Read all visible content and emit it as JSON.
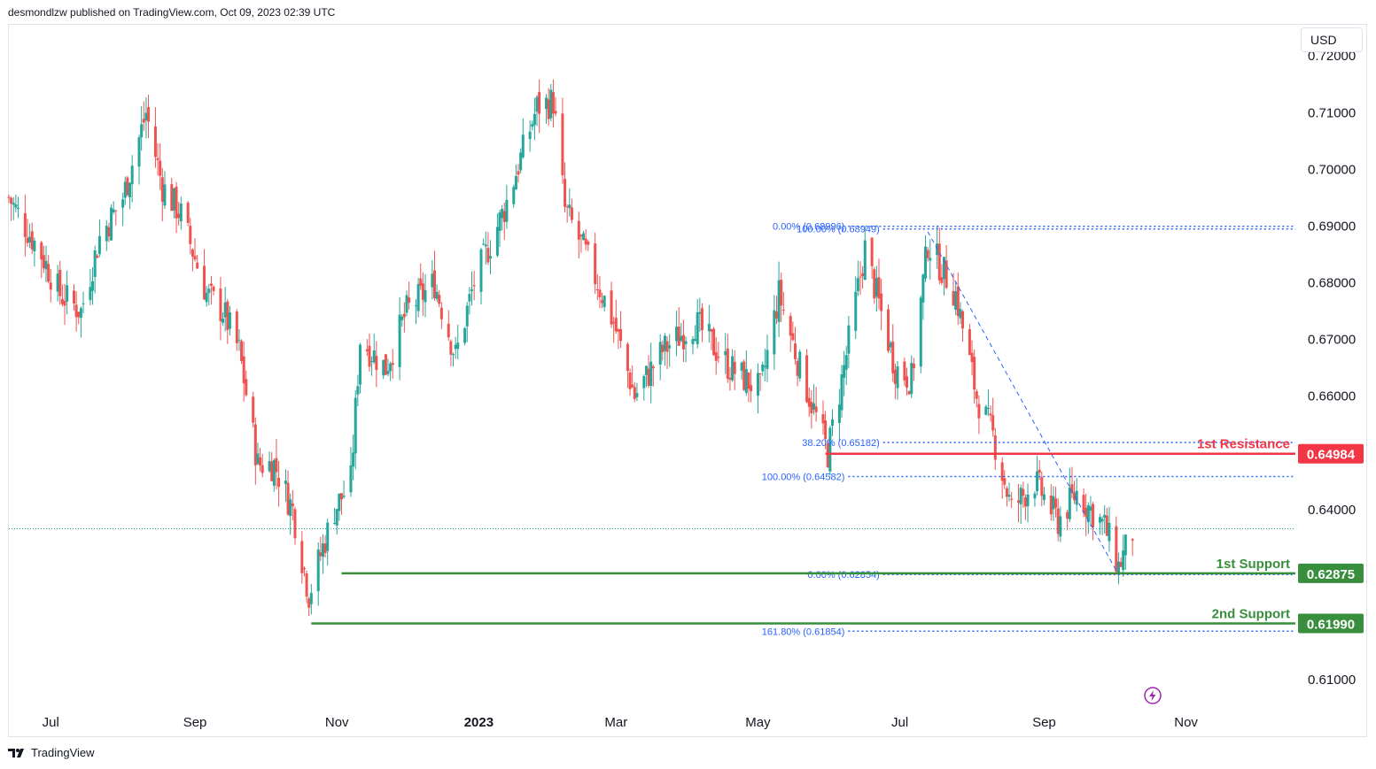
{
  "header": {
    "published": "desmondlzw published on TradingView.com, Oct 09, 2023 02:39 UTC"
  },
  "currency": "USD",
  "footer": {
    "brand": "TradingView",
    "logo_icon": "tradingview-logo-icon"
  },
  "flash_icon": "lightning-icon",
  "colors": {
    "up": "#26a69a",
    "down": "#ef5350",
    "resistance": "#f23645",
    "support": "#388e3c",
    "fib": "#2962ff",
    "last_price": "#26a69a"
  },
  "chart_data": {
    "type": "candlestick",
    "title": "",
    "ylim": [
      0.605,
      0.7255
    ],
    "y_ticks": [
      "0.72000",
      "0.71000",
      "0.70000",
      "0.69000",
      "0.68000",
      "0.67000",
      "0.66000",
      "0.64000",
      "0.61000"
    ],
    "x_ticks": [
      {
        "label": "Jul",
        "date": "2022-07-01",
        "bold": false
      },
      {
        "label": "Sep",
        "date": "2022-09-01",
        "bold": false
      },
      {
        "label": "Nov",
        "date": "2022-11-01",
        "bold": false
      },
      {
        "label": "2023",
        "date": "2023-01-01",
        "bold": true
      },
      {
        "label": "Mar",
        "date": "2023-03-01",
        "bold": false
      },
      {
        "label": "May",
        "date": "2023-05-01",
        "bold": false
      },
      {
        "label": "Jul",
        "date": "2023-07-01",
        "bold": false
      },
      {
        "label": "Sep",
        "date": "2023-09-01",
        "bold": false
      },
      {
        "label": "Nov",
        "date": "2023-11-01",
        "bold": false
      }
    ],
    "x_range": [
      "2022-06-13",
      "2023-12-18"
    ],
    "close_anchors": [
      [
        "2022-06-13",
        0.695
      ],
      [
        "2022-06-20",
        0.69
      ],
      [
        "2022-06-27",
        0.685
      ],
      [
        "2022-07-05",
        0.678
      ],
      [
        "2022-07-14",
        0.675
      ],
      [
        "2022-07-22",
        0.688
      ],
      [
        "2022-08-01",
        0.695
      ],
      [
        "2022-08-11",
        0.71
      ],
      [
        "2022-08-18",
        0.697
      ],
      [
        "2022-08-26",
        0.692
      ],
      [
        "2022-09-06",
        0.678
      ],
      [
        "2022-09-13",
        0.675
      ],
      [
        "2022-09-20",
        0.668
      ],
      [
        "2022-09-28",
        0.648
      ],
      [
        "2022-10-05",
        0.648
      ],
      [
        "2022-10-13",
        0.64
      ],
      [
        "2022-10-20",
        0.625
      ],
      [
        "2022-10-25",
        0.632
      ],
      [
        "2022-10-31",
        0.64
      ],
      [
        "2022-11-07",
        0.645
      ],
      [
        "2022-11-11",
        0.67
      ],
      [
        "2022-11-22",
        0.665
      ],
      [
        "2022-12-01",
        0.675
      ],
      [
        "2022-12-13",
        0.68
      ],
      [
        "2022-12-22",
        0.667
      ],
      [
        "2022-12-30",
        0.68
      ],
      [
        "2023-01-12",
        0.693
      ],
      [
        "2023-01-26",
        0.711
      ],
      [
        "2023-02-02",
        0.712
      ],
      [
        "2023-02-07",
        0.693
      ],
      [
        "2023-02-16",
        0.685
      ],
      [
        "2023-02-28",
        0.673
      ],
      [
        "2023-03-09",
        0.66
      ],
      [
        "2023-03-21",
        0.668
      ],
      [
        "2023-04-04",
        0.673
      ],
      [
        "2023-04-19",
        0.665
      ],
      [
        "2023-05-02",
        0.661
      ],
      [
        "2023-05-10",
        0.678
      ],
      [
        "2023-05-19",
        0.665
      ],
      [
        "2023-05-31",
        0.65
      ],
      [
        "2023-06-07",
        0.665
      ],
      [
        "2023-06-16",
        0.686
      ],
      [
        "2023-06-29",
        0.665
      ],
      [
        "2023-07-06",
        0.663
      ],
      [
        "2023-07-13",
        0.687
      ],
      [
        "2023-07-25",
        0.678
      ],
      [
        "2023-08-03",
        0.66
      ],
      [
        "2023-08-10",
        0.653
      ],
      [
        "2023-08-18",
        0.64
      ],
      [
        "2023-08-28",
        0.645
      ],
      [
        "2023-09-07",
        0.638
      ],
      [
        "2023-09-15",
        0.643
      ],
      [
        "2023-09-27",
        0.637
      ],
      [
        "2023-10-03",
        0.63
      ],
      [
        "2023-10-09",
        0.636
      ]
    ],
    "last_price": 0.6366,
    "levels": [
      {
        "kind": "resistance",
        "label": "1st Resistance",
        "value": 0.64984,
        "value_label": "0.64984",
        "start": "2023-05-30"
      },
      {
        "kind": "support",
        "label": "1st Support",
        "value": 0.62875,
        "value_label": "0.62875",
        "start": "2022-11-03"
      },
      {
        "kind": "support",
        "label": "2nd Support",
        "value": 0.6199,
        "value_label": "0.61990",
        "start": "2022-10-21"
      }
    ],
    "fib_lines": [
      {
        "label": "0.00% (0.68996)",
        "value": 0.68996,
        "start": "2023-06-05"
      },
      {
        "label": "100.00% (0.68949)",
        "value": 0.68949,
        "start": "2023-06-20"
      },
      {
        "label": "38.20% (0.65182)",
        "value": 0.65182,
        "start": "2023-06-20"
      },
      {
        "label": "100.00% (0.64582)",
        "value": 0.64582,
        "start": "2023-06-05"
      },
      {
        "label": "0.00% (0.62854)",
        "value": 0.62854,
        "start": "2023-06-20"
      },
      {
        "label": "161.80% (0.61854)",
        "value": 0.61854,
        "start": "2023-06-05"
      }
    ],
    "trend_line": {
      "from": [
        "2023-07-13",
        0.689
      ],
      "to": [
        "2023-10-03",
        0.6285
      ]
    },
    "grid": false
  }
}
